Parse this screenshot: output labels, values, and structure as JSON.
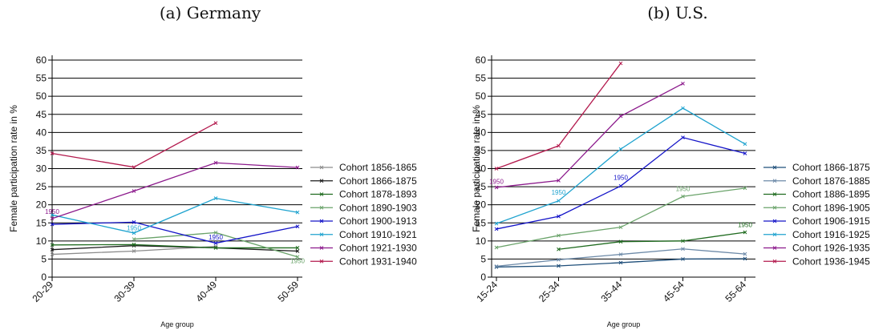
{
  "chart_data": [
    {
      "type": "line",
      "title": "(a) Germany",
      "xlabel": "Age group",
      "ylabel": "Female participation rate in %",
      "categories": [
        "20-29",
        "30-39",
        "40-49",
        "50-59"
      ],
      "yticks": [
        "0",
        "5",
        "10",
        "15",
        "20",
        "25",
        "30",
        "35",
        "40",
        "45",
        "50",
        "55",
        "60"
      ],
      "ylim": [
        0,
        60
      ],
      "grid": true,
      "legend_position": "right",
      "series": [
        {
          "name": "Cohort 1856-1865",
          "color": "#8c8c8c",
          "values": [
            6.3,
            7.2,
            8.5,
            null
          ]
        },
        {
          "name": "Cohort 1866-1875",
          "color": "#1a1a1a",
          "values": [
            7.6,
            8.7,
            8.1,
            7.2
          ]
        },
        {
          "name": "Cohort 1878-1893",
          "color": "#1f6b1f",
          "values": [
            8.9,
            9.0,
            8.1,
            8.1
          ]
        },
        {
          "name": "Cohort 1890-1903",
          "color": "#6aa36a",
          "values": [
            null,
            10.5,
            12.3,
            5.6
          ]
        },
        {
          "name": "Cohort 1900-1913",
          "color": "#1414c8",
          "values": [
            14.6,
            15.2,
            9.4,
            14.0
          ]
        },
        {
          "name": "Cohort 1910-1921",
          "color": "#1fa3cf",
          "values": [
            17.2,
            12.2,
            21.8,
            17.9
          ]
        },
        {
          "name": "Cohort 1921-1930",
          "color": "#8c1a8c",
          "values": [
            16.2,
            23.8,
            31.6,
            30.3
          ]
        },
        {
          "name": "Cohort 1931-1940",
          "color": "#b3194d",
          "values": [
            34.2,
            30.4,
            42.6,
            null
          ]
        }
      ],
      "annotations": [
        {
          "text": "1950",
          "series": "Cohort 1921-1930",
          "category": "20-29",
          "y": 17.5
        },
        {
          "text": "1950",
          "series": "Cohort 1910-1921",
          "category": "30-39",
          "y": 13.0
        },
        {
          "text": "1950",
          "series": "Cohort 1900-1913",
          "category": "40-49",
          "y": 10.4
        },
        {
          "text": "1950",
          "series": "Cohort 1890-1903",
          "category": "50-59",
          "y": 3.9
        }
      ]
    },
    {
      "type": "line",
      "title": "(b) U.S.",
      "xlabel": "Age group",
      "ylabel": "Female participation rate in %",
      "categories": [
        "15-24",
        "25-34",
        "35-44",
        "45-54",
        "55-64"
      ],
      "yticks": [
        "0",
        "5",
        "10",
        "15",
        "20",
        "25",
        "30",
        "35",
        "40",
        "45",
        "50",
        "55",
        "60"
      ],
      "ylim": [
        0,
        60
      ],
      "grid": true,
      "legend_position": "right",
      "series": [
        {
          "name": "Cohort 1866-1875",
          "color": "#1f4f7a",
          "values": [
            2.8,
            3.1,
            4.0,
            5.0,
            5.1
          ]
        },
        {
          "name": "Cohort 1876-1885",
          "color": "#6d8aa8",
          "values": [
            3.0,
            4.8,
            6.3,
            7.8,
            6.4
          ]
        },
        {
          "name": "Cohort 1886-1895",
          "color": "#1f6b1f",
          "values": [
            null,
            7.7,
            9.8,
            10.0,
            12.4
          ]
        },
        {
          "name": "Cohort 1896-1905",
          "color": "#6aa36a",
          "values": [
            8.2,
            11.5,
            13.8,
            22.3,
            24.6
          ]
        },
        {
          "name": "Cohort 1906-1915",
          "color": "#1414c8",
          "values": [
            13.3,
            16.8,
            25.2,
            38.6,
            34.2
          ]
        },
        {
          "name": "Cohort 1916-1925",
          "color": "#1fa3cf",
          "values": [
            14.8,
            21.1,
            35.4,
            46.7,
            36.8
          ]
        },
        {
          "name": "Cohort 1926-1935",
          "color": "#8c1a8c",
          "values": [
            24.8,
            26.7,
            44.5,
            53.5,
            null
          ]
        },
        {
          "name": "Cohort 1936-1945",
          "color": "#b3194d",
          "values": [
            30.0,
            36.3,
            59.1,
            null,
            null
          ]
        }
      ],
      "annotations": [
        {
          "text": "1950",
          "series": "Cohort 1926-1935",
          "category": "15-24",
          "y": 25.8
        },
        {
          "text": "1950",
          "series": "Cohort 1916-1925",
          "category": "25-34",
          "y": 22.8
        },
        {
          "text": "1950",
          "series": "Cohort 1906-1915",
          "category": "35-44",
          "y": 26.9
        },
        {
          "text": "1950",
          "series": "Cohort 1896-1905",
          "category": "45-54",
          "y": 23.8
        },
        {
          "text": "1950",
          "series": "Cohort 1886-1895",
          "category": "55-64",
          "y": 13.8
        }
      ]
    }
  ]
}
